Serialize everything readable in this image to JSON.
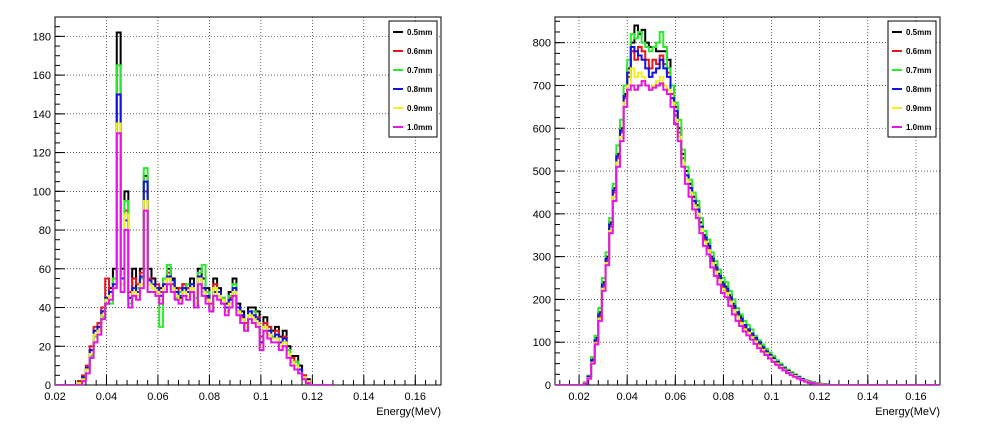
{
  "colors": {
    "0.5mm": "#000000",
    "0.6mm": "#e8141e",
    "0.7mm": "#2ee82e",
    "0.8mm": "#1414e0",
    "0.9mm": "#f0f01e",
    "1.0mm": "#e614e6"
  },
  "chart_data": [
    {
      "type": "histogram",
      "title": "",
      "xlabel": "Energy(MeV)",
      "ylabel": "",
      "xlim": [
        0.02,
        0.17
      ],
      "ylim": [
        0,
        190
      ],
      "xticks": [
        "0.02",
        "0.04",
        "0.06",
        "0.08",
        "0.1",
        "0.12",
        "0.14",
        "0.16"
      ],
      "yticks": [
        "0",
        "20",
        "40",
        "60",
        "80",
        "100",
        "120",
        "140",
        "160",
        "180"
      ],
      "grid": true,
      "legend_position": "top-right",
      "bin_width": 0.0015,
      "bin_start": 0.02,
      "series": [
        {
          "name": "0.5mm",
          "values": [
            0,
            0,
            0,
            0,
            0,
            0,
            2,
            4,
            8,
            18,
            28,
            28,
            38,
            42,
            50,
            60,
            182,
            60,
            100,
            45,
            60,
            48,
            60,
            108,
            60,
            55,
            50,
            50,
            48,
            60,
            55,
            50,
            45,
            52,
            50,
            55,
            42,
            60,
            55,
            50,
            40,
            55,
            50,
            45,
            42,
            48,
            55,
            42,
            38,
            30,
            40,
            40,
            38,
            22,
            35,
            30,
            28,
            30,
            25,
            28,
            20,
            15,
            15,
            10,
            5,
            3,
            0,
            0,
            0,
            0,
            0,
            0
          ]
        },
        {
          "name": "0.6mm",
          "values": [
            0,
            0,
            0,
            0,
            0,
            0,
            2,
            5,
            10,
            20,
            30,
            32,
            40,
            55,
            48,
            55,
            150,
            55,
            90,
            48,
            55,
            52,
            58,
            100,
            55,
            50,
            52,
            48,
            55,
            58,
            52,
            48,
            50,
            52,
            50,
            48,
            40,
            55,
            50,
            45,
            42,
            52,
            48,
            45,
            40,
            45,
            50,
            40,
            35,
            32,
            38,
            38,
            35,
            25,
            32,
            30,
            25,
            28,
            22,
            25,
            18,
            14,
            12,
            8,
            5,
            2,
            0,
            0,
            0,
            0,
            0,
            0
          ]
        },
        {
          "name": "0.7mm",
          "values": [
            0,
            0,
            0,
            0,
            0,
            0,
            1,
            3,
            8,
            15,
            25,
            30,
            35,
            45,
            42,
            55,
            165,
            52,
            95,
            42,
            48,
            50,
            55,
            112,
            52,
            50,
            48,
            30,
            55,
            62,
            50,
            45,
            48,
            50,
            52,
            50,
            45,
            58,
            62,
            48,
            40,
            50,
            48,
            45,
            38,
            46,
            52,
            38,
            32,
            28,
            36,
            38,
            32,
            20,
            30,
            28,
            25,
            26,
            20,
            22,
            18,
            12,
            12,
            8,
            4,
            2,
            0,
            0,
            0,
            0,
            0,
            0
          ]
        },
        {
          "name": "0.8mm",
          "values": [
            0,
            0,
            0,
            0,
            0,
            0,
            1,
            4,
            9,
            18,
            28,
            30,
            38,
            45,
            48,
            52,
            150,
            55,
            85,
            45,
            50,
            48,
            56,
            105,
            54,
            52,
            50,
            46,
            52,
            56,
            54,
            48,
            46,
            50,
            48,
            52,
            40,
            56,
            50,
            46,
            38,
            48,
            48,
            42,
            40,
            44,
            50,
            40,
            36,
            30,
            38,
            36,
            34,
            22,
            30,
            28,
            24,
            26,
            22,
            24,
            16,
            12,
            10,
            8,
            4,
            2,
            0,
            0,
            0,
            0,
            0,
            0
          ]
        },
        {
          "name": "0.9mm",
          "values": [
            0,
            0,
            0,
            0,
            0,
            0,
            1,
            3,
            8,
            16,
            26,
            28,
            36,
            44,
            46,
            50,
            135,
            52,
            88,
            40,
            48,
            46,
            52,
            95,
            52,
            50,
            48,
            44,
            50,
            55,
            50,
            46,
            44,
            48,
            46,
            50,
            42,
            55,
            48,
            44,
            40,
            50,
            46,
            44,
            38,
            42,
            48,
            38,
            34,
            30,
            36,
            34,
            32,
            20,
            30,
            26,
            24,
            24,
            20,
            22,
            16,
            12,
            10,
            6,
            4,
            2,
            0,
            0,
            0,
            0,
            0,
            0
          ]
        },
        {
          "name": "1.0mm",
          "values": [
            0,
            0,
            0,
            0,
            0,
            0,
            0,
            2,
            6,
            14,
            22,
            26,
            34,
            42,
            44,
            50,
            130,
            48,
            80,
            40,
            46,
            44,
            50,
            90,
            48,
            48,
            46,
            42,
            48,
            52,
            48,
            44,
            42,
            46,
            44,
            48,
            40,
            52,
            46,
            42,
            38,
            46,
            44,
            42,
            36,
            40,
            46,
            36,
            32,
            28,
            34,
            32,
            30,
            18,
            28,
            24,
            22,
            22,
            18,
            20,
            14,
            10,
            8,
            6,
            3,
            1,
            0,
            0,
            0,
            0,
            0,
            0
          ]
        }
      ]
    },
    {
      "type": "histogram",
      "title": "",
      "xlabel": "Energy(MeV)",
      "ylabel": "",
      "xlim": [
        0.01,
        0.17
      ],
      "ylim": [
        0,
        860
      ],
      "xticks": [
        "0.02",
        "0.04",
        "0.06",
        "0.08",
        "0.1",
        "0.12",
        "0.14",
        "0.16"
      ],
      "yticks": [
        "0",
        "100",
        "200",
        "300",
        "400",
        "500",
        "600",
        "700",
        "800"
      ],
      "grid": true,
      "legend_position": "top-right",
      "bin_width": 0.0015,
      "bin_start": 0.01,
      "series": [
        {
          "name": "0.5mm",
          "values": [
            0,
            0,
            0,
            0,
            0,
            0,
            0,
            0,
            5,
            20,
            60,
            110,
            170,
            240,
            300,
            380,
            460,
            540,
            600,
            680,
            740,
            800,
            840,
            820,
            830,
            800,
            790,
            790,
            780,
            780,
            780,
            760,
            700,
            650,
            600,
            540,
            500,
            470,
            440,
            420,
            380,
            350,
            330,
            300,
            280,
            260,
            240,
            230,
            210,
            190,
            170,
            160,
            140,
            130,
            120,
            110,
            100,
            90,
            80,
            72,
            64,
            55,
            48,
            40,
            34,
            28,
            24,
            18,
            14,
            10,
            8,
            6,
            4,
            3,
            2,
            1,
            0,
            0,
            0,
            0,
            0,
            0,
            0,
            0,
            0,
            0,
            0,
            0,
            0,
            0,
            0,
            0,
            0,
            0,
            0,
            0,
            0,
            0,
            0,
            0,
            0,
            0,
            0,
            0,
            0,
            0,
            0
          ]
        },
        {
          "name": "0.6mm",
          "values": [
            0,
            0,
            0,
            0,
            0,
            0,
            0,
            0,
            4,
            18,
            55,
            100,
            160,
            230,
            290,
            370,
            450,
            530,
            590,
            670,
            720,
            780,
            760,
            790,
            780,
            760,
            740,
            760,
            750,
            770,
            750,
            730,
            680,
            630,
            590,
            530,
            490,
            460,
            430,
            410,
            370,
            340,
            320,
            290,
            270,
            250,
            230,
            220,
            200,
            180,
            165,
            150,
            135,
            125,
            115,
            105,
            95,
            85,
            76,
            68,
            60,
            52,
            45,
            38,
            32,
            26,
            22,
            17,
            13,
            9,
            7,
            5,
            3,
            2,
            1,
            1,
            0,
            0,
            0,
            0,
            0,
            0,
            0,
            0,
            0,
            0,
            0,
            0,
            0,
            0,
            0,
            0,
            0,
            0,
            0,
            0,
            0,
            0,
            0,
            0,
            0,
            0,
            0,
            0,
            0,
            0,
            0
          ]
        },
        {
          "name": "0.7mm",
          "values": [
            0,
            0,
            0,
            0,
            0,
            0,
            0,
            0,
            6,
            22,
            65,
            115,
            180,
            250,
            310,
            390,
            470,
            560,
            620,
            700,
            760,
            820,
            810,
            825,
            800,
            790,
            780,
            790,
            800,
            825,
            790,
            740,
            700,
            660,
            620,
            550,
            510,
            480,
            450,
            430,
            390,
            360,
            340,
            310,
            290,
            270,
            250,
            240,
            220,
            200,
            180,
            165,
            150,
            140,
            130,
            115,
            105,
            95,
            85,
            76,
            68,
            58,
            50,
            42,
            36,
            30,
            25,
            20,
            15,
            11,
            8,
            6,
            4,
            3,
            2,
            1,
            0,
            0,
            0,
            0,
            0,
            0,
            0,
            0,
            0,
            0,
            0,
            0,
            0,
            0,
            0,
            0,
            0,
            0,
            0,
            0,
            0,
            0,
            0,
            0,
            0,
            0,
            0,
            0,
            0,
            0,
            0
          ]
        },
        {
          "name": "0.8mm",
          "values": [
            0,
            0,
            0,
            0,
            0,
            0,
            0,
            0,
            5,
            20,
            58,
            105,
            165,
            235,
            295,
            375,
            455,
            535,
            595,
            675,
            730,
            790,
            780,
            770,
            760,
            740,
            720,
            730,
            740,
            760,
            740,
            720,
            670,
            640,
            580,
            520,
            490,
            460,
            430,
            410,
            370,
            345,
            325,
            295,
            275,
            255,
            235,
            225,
            205,
            185,
            170,
            155,
            140,
            130,
            120,
            110,
            100,
            88,
            78,
            70,
            62,
            54,
            46,
            39,
            33,
            27,
            23,
            18,
            14,
            10,
            7,
            5,
            3,
            2,
            1,
            1,
            0,
            0,
            0,
            0,
            0,
            0,
            0,
            0,
            0,
            0,
            0,
            0,
            0,
            0,
            0,
            0,
            0,
            0,
            0,
            0,
            0,
            0,
            0,
            0,
            0,
            0,
            0,
            0,
            0,
            0,
            0
          ]
        },
        {
          "name": "0.9mm",
          "values": [
            0,
            0,
            0,
            0,
            0,
            0,
            0,
            0,
            4,
            16,
            52,
            98,
            155,
            225,
            285,
            360,
            440,
            520,
            580,
            660,
            700,
            740,
            720,
            730,
            720,
            700,
            690,
            700,
            710,
            720,
            700,
            690,
            660,
            620,
            580,
            520,
            480,
            450,
            420,
            400,
            365,
            335,
            315,
            285,
            265,
            245,
            225,
            215,
            195,
            175,
            160,
            145,
            130,
            122,
            112,
            102,
            92,
            82,
            74,
            66,
            58,
            50,
            43,
            36,
            30,
            25,
            21,
            16,
            12,
            9,
            6,
            4,
            3,
            2,
            1,
            0,
            0,
            0,
            0,
            0,
            0,
            0,
            0,
            0,
            0,
            0,
            0,
            0,
            0,
            0,
            0,
            0,
            0,
            0,
            0,
            0,
            0,
            0,
            0,
            0,
            0,
            0,
            0,
            0,
            0,
            0,
            0
          ]
        },
        {
          "name": "1.0mm",
          "values": [
            0,
            0,
            0,
            0,
            0,
            0,
            0,
            0,
            3,
            15,
            50,
            95,
            150,
            220,
            280,
            355,
            430,
            510,
            570,
            650,
            690,
            700,
            690,
            700,
            710,
            700,
            690,
            695,
            700,
            705,
            690,
            680,
            650,
            610,
            570,
            510,
            470,
            440,
            410,
            390,
            355,
            325,
            305,
            275,
            255,
            235,
            215,
            205,
            185,
            165,
            150,
            138,
            125,
            116,
            106,
            96,
            86,
            78,
            70,
            62,
            54,
            47,
            40,
            34,
            28,
            23,
            19,
            15,
            11,
            8,
            5,
            4,
            2,
            1,
            1,
            0,
            0,
            0,
            0,
            0,
            0,
            0,
            0,
            0,
            0,
            0,
            0,
            0,
            0,
            0,
            0,
            0,
            0,
            0,
            0,
            0,
            0,
            0,
            0,
            0,
            0,
            0,
            0,
            0,
            0,
            0,
            0
          ]
        }
      ]
    }
  ]
}
